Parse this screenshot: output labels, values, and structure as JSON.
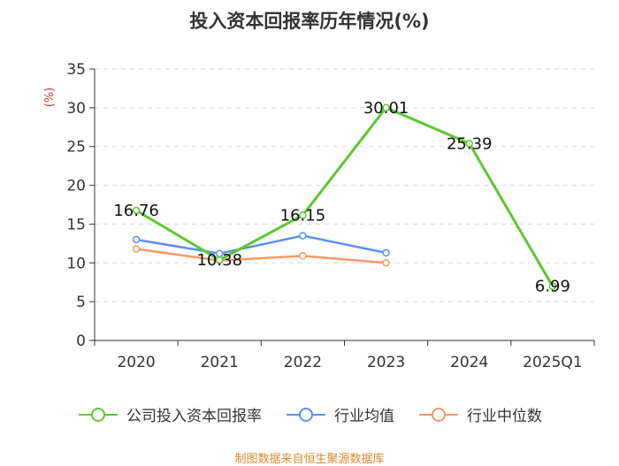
{
  "chart_data": {
    "type": "line",
    "title": "投入资本回报率历年情况(%)",
    "ylabel": "(%)",
    "xlabel": "",
    "categories": [
      "2020",
      "2021",
      "2022",
      "2023",
      "2024",
      "2025Q1"
    ],
    "ylim": [
      0,
      35
    ],
    "yticks": [
      0,
      5,
      10,
      15,
      20,
      25,
      30,
      35
    ],
    "grid": true,
    "series": [
      {
        "name": "公司投入资本回报率",
        "color": "#5cc832",
        "values": [
          16.76,
          10.38,
          16.15,
          30.01,
          25.39,
          6.99
        ],
        "labels": [
          "16.76",
          "10.38",
          "16.15",
          "30.01",
          "25.39",
          "6.99"
        ]
      },
      {
        "name": "行业均值",
        "color": "#5b8ff0",
        "values": [
          13.0,
          11.2,
          13.5,
          11.3,
          null,
          null
        ]
      },
      {
        "name": "行业中位数",
        "color": "#f59a64",
        "values": [
          11.8,
          10.3,
          10.9,
          10.0,
          null,
          null
        ]
      }
    ],
    "legend_position": "bottom"
  },
  "source": "制图数据来自恒生聚源数据库"
}
